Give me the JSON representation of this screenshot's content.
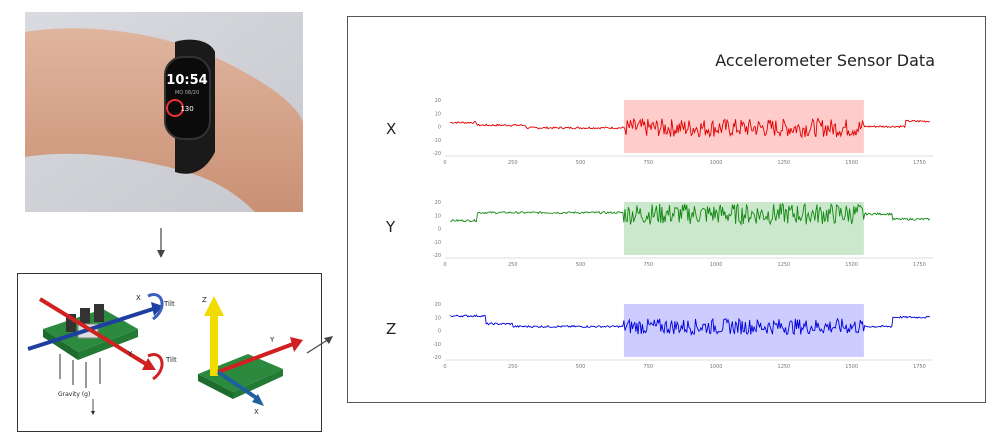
{
  "chart_data": [
    {
      "type": "line",
      "name": "X",
      "ylim": [
        -20,
        20
      ],
      "xlim": [
        0,
        1800
      ],
      "xticks": [
        "0",
        "250",
        "500",
        "750",
        "1000",
        "1250",
        "1500",
        "1750"
      ],
      "yticks": [
        "20",
        "10",
        "0",
        "-10",
        "-20"
      ],
      "color": "#e00000",
      "highlight": [
        660,
        1545
      ],
      "highlight_color": "#ffcccc"
    },
    {
      "type": "line",
      "name": "Y",
      "ylim": [
        -20,
        20
      ],
      "xlim": [
        0,
        1800
      ],
      "xticks": [
        "0",
        "250",
        "500",
        "750",
        "1000",
        "1250",
        "1500",
        "1750"
      ],
      "yticks": [
        "20",
        "10",
        "0",
        "-10",
        "-20"
      ],
      "color": "#118811",
      "highlight": [
        660,
        1545
      ],
      "highlight_color": "#cce8cc"
    },
    {
      "type": "line",
      "name": "Z",
      "ylim": [
        -20,
        20
      ],
      "xlim": [
        0,
        1800
      ],
      "xticks": [
        "0",
        "250",
        "500",
        "750",
        "1000",
        "1250",
        "1500",
        "1750"
      ],
      "yticks": [
        "20",
        "10",
        "0",
        "-10",
        "-20"
      ],
      "color": "#0000dd",
      "highlight": [
        660,
        1545
      ],
      "highlight_color": "#ccccff"
    }
  ],
  "title": "Accelerometer Sensor Data",
  "labels": {
    "x": "X",
    "y": "Y",
    "z": "Z"
  },
  "watch": {
    "time": "10:54",
    "date": "MO 08/20",
    "steps": "130"
  },
  "sensor": {
    "tilt1": "Tilt",
    "tilt2": "Tilt",
    "axis_x": "X",
    "axis_y": "Y",
    "axis_z": "Z",
    "gravity": "Gravity (g)"
  }
}
